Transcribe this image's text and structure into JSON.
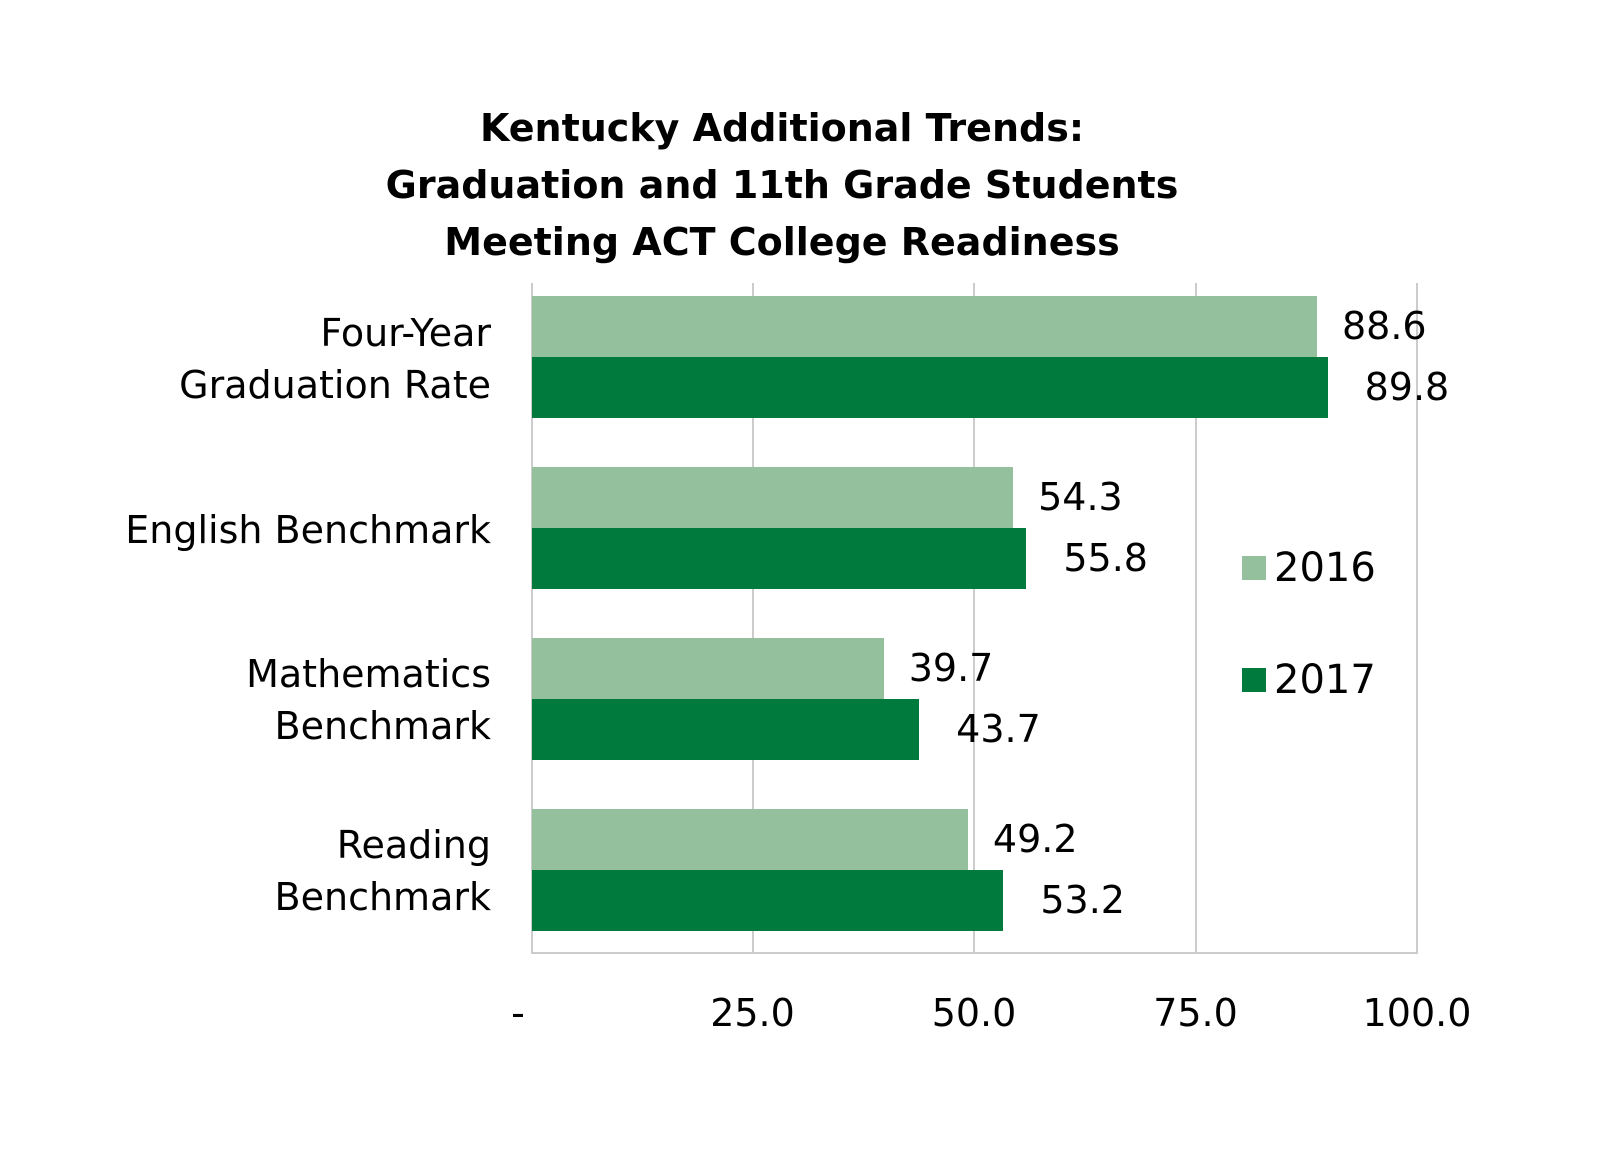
{
  "chart_data": {
    "type": "bar",
    "orientation": "horizontal",
    "title": "Kentucky Additional Trends: Graduation and 11th Grade Students Meeting ACT College Readiness",
    "title_lines": [
      "Kentucky Additional Trends:",
      "Graduation and 11th Grade Students",
      "Meeting ACT College Readiness"
    ],
    "categories": [
      "Four-Year Graduation Rate",
      "English Benchmark",
      "Mathematics Benchmark",
      "Reading Benchmark"
    ],
    "category_labels": [
      "Four-Year\nGraduation Rate",
      "English Benchmark",
      "Mathematics\nBenchmark",
      "Reading\nBenchmark"
    ],
    "series": [
      {
        "name": "2016",
        "color": "#95c09d",
        "values": [
          88.6,
          54.3,
          39.7,
          49.2
        ],
        "labels": [
          "88.6",
          "54.3",
          "39.7",
          "49.2"
        ]
      },
      {
        "name": "2017",
        "color": "#007a3d",
        "values": [
          89.8,
          55.8,
          43.7,
          53.2
        ],
        "labels": [
          "89.8",
          "55.8",
          "43.7",
          "53.2"
        ]
      }
    ],
    "xlabel": "",
    "ylabel": "",
    "xlim": [
      0,
      100
    ],
    "x_ticks": [
      0,
      25,
      50,
      75,
      100
    ],
    "x_tick_labels": [
      "-",
      "25.0",
      "50.0",
      "75.0",
      "100.0"
    ],
    "grid": true,
    "legend_position": "right"
  },
  "colors": {
    "series_2016": "#95c09d",
    "series_2017": "#007a3d",
    "gridline": "#cccccc"
  }
}
